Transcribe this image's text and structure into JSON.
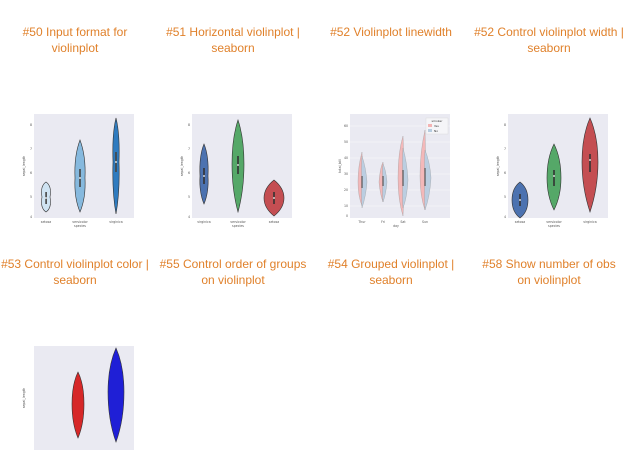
{
  "gallery": {
    "accent_color": "#e0812b",
    "rows": [
      {
        "items": [
          {
            "caption": "#50 Input format for violinplot",
            "icon": "violin-thumbnail"
          },
          {
            "caption": "#51 Horizontal violinplot | seaborn",
            "icon": "violin-thumbnail"
          },
          {
            "caption": "#52 Violinplot linewidth",
            "icon": "violin-thumbnail"
          },
          {
            "caption": "#52 Control violinplot width | seaborn",
            "icon": "violin-thumbnail"
          }
        ]
      },
      {
        "items": [
          {
            "caption": "#53 Control violinplot color | seaborn",
            "icon": "violin-thumbnail"
          },
          {
            "caption": "#55 Control order of groups on violinplot",
            "icon": "violin-thumbnail"
          },
          {
            "caption": "#54 Grouped violinplot | seaborn",
            "icon": "violin-thumbnail"
          },
          {
            "caption": "#58 Show number of obs on violinplot",
            "icon": "violin-thumbnail"
          }
        ]
      },
      {
        "items": [
          {
            "caption": "",
            "icon": "violin-thumbnail"
          }
        ]
      }
    ],
    "thumbnails": {
      "row1_col1": {
        "chart_type": "violin",
        "palette": [
          "#cfe3f2",
          "#86b9de",
          "#2f7bbf"
        ],
        "tick_labels": [
          "setosa",
          "versicolor",
          "virginica"
        ],
        "xlabel": "species",
        "ylabel": "sepal_length",
        "yticks": [
          "4",
          "5",
          "6",
          "7",
          "8"
        ]
      },
      "row1_col2": {
        "chart_type": "violin",
        "palette": [
          "#4c72b0",
          "#55a868",
          "#c44e52"
        ],
        "tick_labels": [
          "virginica",
          "versicolor",
          "setosa"
        ],
        "xlabel": "species",
        "ylabel": "sepal_length",
        "yticks": [
          "4",
          "5",
          "6",
          "7",
          "8"
        ]
      },
      "row1_col3": {
        "chart_type": "violin",
        "palette": [
          "#f4b3b3",
          "#b6cce0"
        ],
        "tick_labels": [
          "Thur",
          "Fri",
          "Sat",
          "Sun"
        ],
        "xlabel": "day",
        "ylabel": "total_bill",
        "yticks": [
          "0",
          "10",
          "20",
          "30",
          "40",
          "50",
          "60"
        ],
        "legend_title": "smoker",
        "legend_entries": [
          "Yes",
          "No"
        ]
      },
      "row1_col4": {
        "chart_type": "violin",
        "palette": [
          "#4c72b0",
          "#55a868",
          "#c44e52"
        ],
        "tick_labels": [
          "setosa",
          "versicolor",
          "virginica"
        ],
        "xlabel": "species",
        "ylabel": "sepal_length",
        "yticks": [
          "4",
          "5",
          "6",
          "7",
          "8"
        ]
      },
      "row2_col0": {
        "chart_type": "violin",
        "palette": [
          "#d62728",
          "#1f1fd6"
        ],
        "ylabel": "sepal_length"
      }
    }
  }
}
